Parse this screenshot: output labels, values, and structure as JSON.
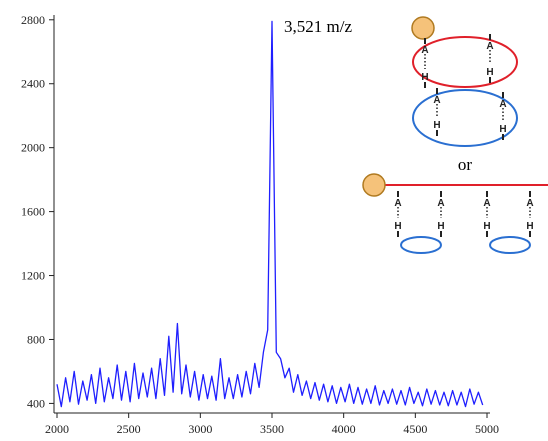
{
  "chart_data": {
    "type": "line",
    "annotation": "3,521 m/z",
    "x": [
      2000,
      2030,
      2060,
      2090,
      2120,
      2150,
      2180,
      2210,
      2240,
      2270,
      2300,
      2330,
      2360,
      2390,
      2420,
      2450,
      2480,
      2510,
      2540,
      2570,
      2600,
      2630,
      2660,
      2690,
      2720,
      2750,
      2780,
      2810,
      2840,
      2870,
      2900,
      2930,
      2960,
      2990,
      3020,
      3050,
      3080,
      3110,
      3140,
      3170,
      3200,
      3230,
      3260,
      3290,
      3320,
      3350,
      3380,
      3410,
      3440,
      3470,
      3500,
      3530,
      3560,
      3590,
      3620,
      3650,
      3680,
      3710,
      3740,
      3770,
      3800,
      3830,
      3860,
      3890,
      3920,
      3950,
      3980,
      4010,
      4040,
      4070,
      4100,
      4130,
      4160,
      4190,
      4220,
      4250,
      4280,
      4310,
      4340,
      4370,
      4400,
      4430,
      4460,
      4490,
      4520,
      4550,
      4580,
      4610,
      4640,
      4670,
      4700,
      4730,
      4760,
      4790,
      4820,
      4850,
      4880,
      4910,
      4940,
      4970
    ],
    "values": [
      520,
      380,
      560,
      410,
      600,
      395,
      540,
      420,
      580,
      400,
      620,
      410,
      560,
      430,
      640,
      420,
      600,
      410,
      650,
      430,
      590,
      440,
      620,
      430,
      680,
      450,
      820,
      470,
      900,
      460,
      640,
      440,
      600,
      420,
      580,
      430,
      570,
      420,
      680,
      430,
      560,
      430,
      580,
      440,
      600,
      460,
      650,
      500,
      720,
      860,
      2790,
      720,
      680,
      560,
      620,
      470,
      580,
      450,
      540,
      430,
      530,
      420,
      520,
      410,
      510,
      400,
      500,
      410,
      520,
      400,
      500,
      395,
      490,
      400,
      510,
      390,
      480,
      400,
      490,
      395,
      480,
      390,
      500,
      400,
      470,
      385,
      490,
      395,
      480,
      390,
      470,
      385,
      480,
      390,
      470,
      380,
      490,
      395,
      470,
      390
    ],
    "color": "#1f1fff",
    "xlim": [
      2000,
      5000
    ],
    "xticks": [
      2000,
      2500,
      3000,
      3500,
      4000,
      4500,
      5000
    ],
    "ylim": [
      340,
      2830
    ],
    "yticks": [
      400,
      800,
      1200,
      1600,
      2000,
      2400,
      2800
    ]
  },
  "diagram": {
    "ring_pairs": [
      [
        "A",
        "H"
      ],
      [
        "A",
        "H"
      ],
      [
        "A",
        "H"
      ],
      [
        "A",
        "H"
      ]
    ],
    "connector": "or",
    "linear_pairs": [
      [
        "A",
        "H"
      ],
      [
        "A",
        "H"
      ],
      [
        "A",
        "H"
      ],
      [
        "A",
        "H"
      ]
    ]
  }
}
